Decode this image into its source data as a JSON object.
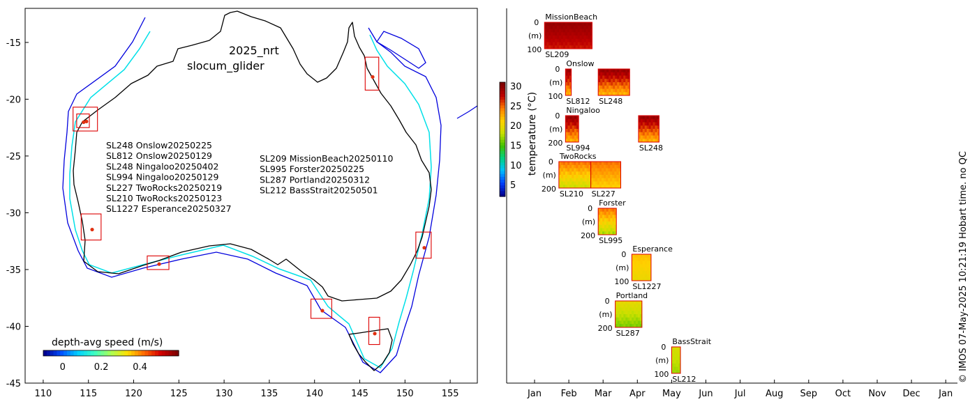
{
  "map": {
    "title_line1": "2025_nrt",
    "title_line2": "slocum_glider",
    "xlim": [
      108,
      158
    ],
    "ylim": [
      -45,
      -12
    ],
    "xticks": [
      "110",
      "115",
      "120",
      "125",
      "130",
      "135",
      "140",
      "145",
      "150",
      "155"
    ],
    "yticks": [
      "-15",
      "-20",
      "-25",
      "-30",
      "-35",
      "-40",
      "-45"
    ],
    "mission_list_left": [
      "SL248 Onslow20250225",
      "SL812 Onslow20250129",
      "SL248 Ningaloo20250402",
      "SL994 Ningaloo20250129",
      "SL227 TwoRocks20250219",
      "SL210 TwoRocks20250123",
      "SL1227 Esperance20250327"
    ],
    "mission_list_right": [
      "SL209 MissionBeach20250110",
      "SL995 Forster20250225",
      "SL287 Portland20250312",
      "SL212 BassStrait20250501"
    ],
    "colorbar_label": "depth-avg speed (m/s)",
    "colorbar_ticks": [
      "0",
      "0.2",
      "0.4"
    ],
    "colorbar_range": [
      -0.1,
      0.6
    ],
    "colormap": [
      "#00008f",
      "#0050ff",
      "#00d0ff",
      "#3cffc3",
      "#aaff55",
      "#ffe000",
      "#ff6a00",
      "#d40000",
      "#7f0000"
    ],
    "coastline_color": "#000000",
    "isobath_200m_color": "#00e0e8",
    "isobath_2000m_color": "#0000dd",
    "box_color": "#dd0000",
    "deployment_boxes": [
      {
        "name": "Onslow/Ningaloo-1",
        "lon": [
          113.3,
          116.0
        ],
        "lat": [
          -22.8,
          -20.7
        ]
      },
      {
        "name": "Onslow/Ningaloo-2",
        "lon": [
          113.7,
          115.1
        ],
        "lat": [
          -22.5,
          -21.3
        ]
      },
      {
        "name": "TwoRocks",
        "lon": [
          114.2,
          116.4
        ],
        "lat": [
          -32.4,
          -30.1
        ]
      },
      {
        "name": "Esperance",
        "lon": [
          121.5,
          123.9
        ],
        "lat": [
          -35.0,
          -33.8
        ]
      },
      {
        "name": "Portland",
        "lon": [
          139.6,
          141.9
        ],
        "lat": [
          -39.3,
          -37.6
        ]
      },
      {
        "name": "BassStrait",
        "lon": [
          146.0,
          147.2
        ],
        "lat": [
          -41.6,
          -39.2
        ]
      },
      {
        "name": "Forster",
        "lon": [
          151.2,
          152.9
        ],
        "lat": [
          -34.0,
          -31.7
        ]
      },
      {
        "name": "MissionBeach",
        "lon": [
          145.6,
          147.1
        ],
        "lat": [
          -19.2,
          -16.3
        ]
      }
    ]
  },
  "timeline": {
    "months": [
      "Jan",
      "Feb",
      "Mar",
      "Apr",
      "May",
      "Jun",
      "Jul",
      "Aug",
      "Sep",
      "Oct",
      "Nov",
      "Dec",
      "Jan"
    ],
    "colorbar_label": "temperature (°C)",
    "colorbar_ticks": [
      "5",
      "10",
      "15",
      "20",
      "25",
      "30"
    ],
    "colorbar_range": [
      2,
      31
    ],
    "colormap": [
      "#00008f",
      "#0040ff",
      "#00c0ff",
      "#00d080",
      "#40c000",
      "#c8e000",
      "#ffd000",
      "#ff8000",
      "#c00000",
      "#7f0000"
    ],
    "depth_unit_label": "(m)",
    "footer": "© IMOS 07-May-2025 10:21:19 Hobart time. no QC"
  },
  "chart_data": {
    "type": "heatmap",
    "x_axis": "month of 2025",
    "sites": [
      {
        "site": "MissionBeach",
        "depth_max": "100",
        "panels": [
          {
            "glider": "SL209",
            "start": "2025-01-10",
            "end": "2025-02-20",
            "temperature_range_c": [
              27,
              30
            ]
          }
        ]
      },
      {
        "site": "Onslow",
        "depth_max": "100",
        "panels": [
          {
            "glider": "SL812",
            "start": "2025-01-29",
            "end": "2025-02-03",
            "temperature_range_c": [
              22,
              30
            ]
          },
          {
            "glider": "SL248",
            "start": "2025-02-25",
            "end": "2025-03-25",
            "temperature_range_c": [
              22,
              30
            ]
          }
        ]
      },
      {
        "site": "Ningaloo",
        "depth_max": "200",
        "panels": [
          {
            "glider": "SL994",
            "start": "2025-01-29",
            "end": "2025-02-09",
            "temperature_range_c": [
              22,
              30
            ]
          },
          {
            "glider": "SL248",
            "start": "2025-04-02",
            "end": "2025-04-20",
            "temperature_range_c": [
              22,
              30
            ]
          }
        ]
      },
      {
        "site": "TwoRocks",
        "depth_max": "200",
        "panels": [
          {
            "glider": "SL210",
            "start": "2025-01-23",
            "end": "2025-02-19",
            "temperature_range_c": [
              18,
              25
            ]
          },
          {
            "glider": "SL227",
            "start": "2025-02-19",
            "end": "2025-03-17",
            "temperature_range_c": [
              21,
              25
            ]
          }
        ]
      },
      {
        "site": "Forster",
        "depth_max": "200",
        "panels": [
          {
            "glider": "SL995",
            "start": "2025-02-25",
            "end": "2025-03-13",
            "temperature_range_c": [
              17,
              25
            ]
          }
        ]
      },
      {
        "site": "Esperance",
        "depth_max": "100",
        "panels": [
          {
            "glider": "SL1227",
            "start": "2025-03-27",
            "end": "2025-04-13",
            "temperature_range_c": [
              20,
              22
            ]
          }
        ]
      },
      {
        "site": "Portland",
        "depth_max": "200",
        "panels": [
          {
            "glider": "SL287",
            "start": "2025-03-12",
            "end": "2025-04-05",
            "temperature_range_c": [
              16,
              20
            ]
          }
        ]
      },
      {
        "site": "BassStrait",
        "depth_max": "100",
        "panels": [
          {
            "glider": "SL212",
            "start": "2025-05-01",
            "end": "2025-05-09",
            "temperature_range_c": [
              17,
              19
            ]
          }
        ]
      }
    ]
  }
}
